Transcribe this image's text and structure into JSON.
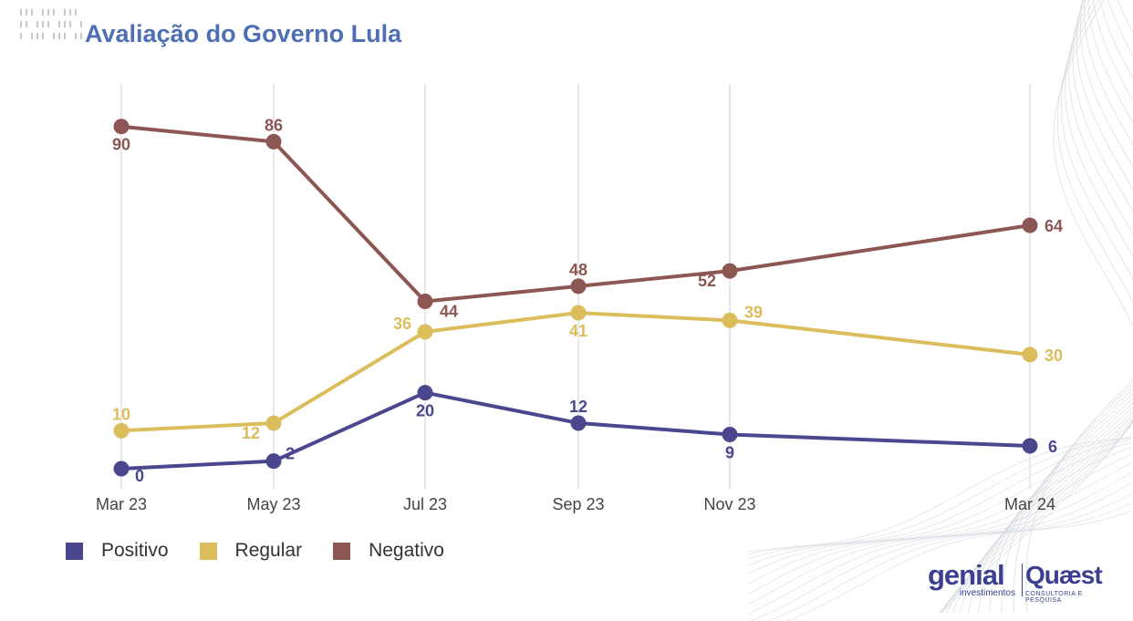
{
  "title": "Avaliação do Governo Lula",
  "colors": {
    "positivo": "#4a478f",
    "regular": "#dcbd5c",
    "negativo": "#8c5752",
    "title": "#4e6fb3"
  },
  "legend": [
    {
      "label": "Positivo",
      "color": "#4a478f"
    },
    {
      "label": "Regular",
      "color": "#dcbd5c"
    },
    {
      "label": "Negativo",
      "color": "#8c5752"
    }
  ],
  "chart_data": {
    "type": "line",
    "title": "Avaliação do Governo Lula",
    "xlabel": "",
    "ylabel": "",
    "categories": [
      "Mar 23",
      "May 23",
      "Jul 23",
      "Sep 23",
      "Nov 23",
      "Mar 24"
    ],
    "x": [
      "2023-03-01",
      "2023-05-01",
      "2023-07-01",
      "2023-09-01",
      "2023-11-01",
      "2024-03-01"
    ],
    "grid": "vertical",
    "legend_position": "bottom-left",
    "series": [
      {
        "name": "Positivo",
        "color": "#4a478f",
        "values": [
          0,
          2,
          20,
          12,
          9,
          6
        ]
      },
      {
        "name": "Regular",
        "color": "#dcbd5c",
        "values": [
          10,
          12,
          36,
          41,
          39,
          30
        ]
      },
      {
        "name": "Negativo",
        "color": "#8c5752",
        "values": [
          90,
          86,
          44,
          48,
          52,
          64
        ]
      }
    ]
  },
  "logos": {
    "genial": "genial",
    "genial_sub": "investimentos",
    "quaest": "Quæst",
    "quaest_sub": "CONSULTORIA E PESQUISA"
  }
}
